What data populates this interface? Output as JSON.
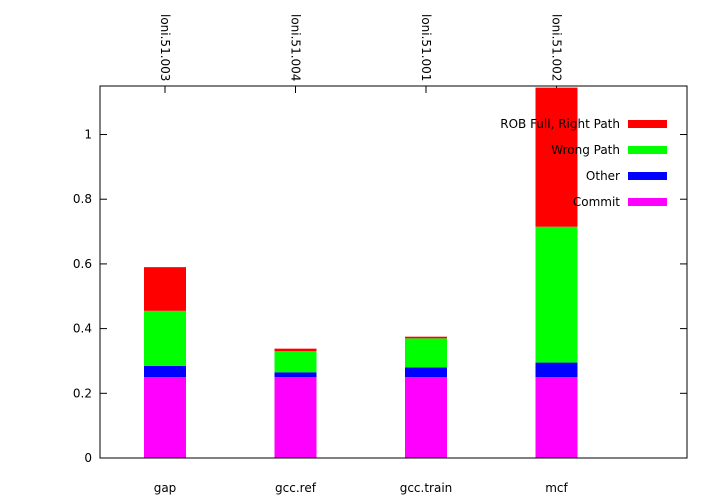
{
  "chart_data": {
    "type": "bar",
    "stacked": true,
    "categories": [
      "gap",
      "gcc.ref",
      "gcc.train",
      "mcf"
    ],
    "top_labels": [
      "loni.51.003",
      "loni.51.004",
      "loni.51.001",
      "loni.51.002"
    ],
    "series": [
      {
        "name": "Commit",
        "color": "#ff00ff",
        "values": [
          0.25,
          0.25,
          0.25,
          0.25
        ]
      },
      {
        "name": "Other",
        "color": "#0000ff",
        "values": [
          0.035,
          0.015,
          0.03,
          0.045
        ]
      },
      {
        "name": "Wrong Path",
        "color": "#00ff00",
        "values": [
          0.17,
          0.065,
          0.09,
          0.42
        ]
      },
      {
        "name": "ROB Full, Right Path",
        "color": "#ff0000",
        "values": [
          0.135,
          0.008,
          0.005,
          0.43
        ]
      }
    ],
    "ylim": [
      0,
      1.15
    ],
    "yticks": [
      0,
      0.2,
      0.4,
      0.6,
      0.8,
      1
    ],
    "ytick_labels": [
      "0",
      "0.2",
      "0.4",
      "0.6",
      "0.8",
      "1"
    ],
    "grid": false,
    "legend_position": "top-right"
  }
}
